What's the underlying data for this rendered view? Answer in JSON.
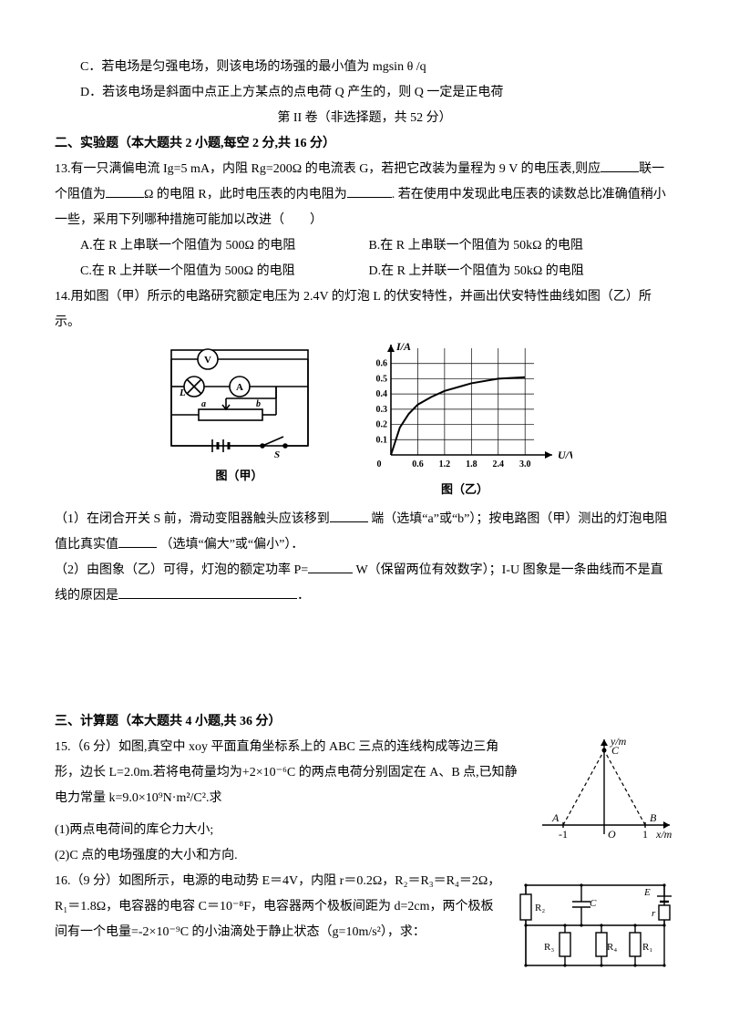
{
  "page": {
    "optC": "C．若电场是匀强电场，则该电场的场强的最小值为 mgsin θ /q",
    "optD": "D．若该电场是斜面中点正上方某点的点电荷 Q 产生的，则 Q 一定是正电荷",
    "part2_title": "第 II 卷（非选择题，共 52 分）",
    "sec2_title": "二、实验题（本大题共 2 小题,每空 2 分,共 16 分）",
    "q13_text_1": "13.有一只满偏电流 Ig=5 mA，内阻 Rg=200Ω 的电流表 G，若把它改装为量程为 9 V 的电压表,则应",
    "q13_text_2": "联一个阻值为",
    "q13_text_3": "Ω 的电阻 R，此时电压表的内电阻为",
    "q13_text_4": ". 若在使用中发现此电压表的读数总比准确值稍小一些，采用下列哪种措施可能加以改进（　　）",
    "q13_A": "A.在 R 上串联一个阻值为 500Ω 的电阻",
    "q13_B": "B.在 R 上串联一个阻值为 50kΩ 的电阻",
    "q13_C": "C.在 R 上并联一个阻值为 500Ω 的电阻",
    "q13_D": "D.在 R 上并联一个阻值为 50kΩ 的电阻",
    "q14_intro": "14.用如图（甲）所示的电路研究额定电压为 2.4V 的灯泡 L 的伏安特性，并画出伏安特性曲线如图（乙）所示。",
    "fig_jia_label": "图（甲）",
    "fig_yi_label": "图（乙）",
    "q14_1a": "（1）在闭合开关 S 前，滑动变阻器触头应该移到",
    "q14_1b": "端（选填“a”或“b”）；按电路图（甲）测出的灯泡电阻值比真实值",
    "q14_1c": "（选填“偏大”或“偏小”）．",
    "q14_2a": "（2）由图象（乙）可得，灯泡的额定功率 P=",
    "q14_2b": "W（保留两位有效数字）；I-U 图象是一条曲线而不是直线的原因是",
    "sec3_title": "三、计算题（本大题共 4 小题,共 36 分）",
    "q15": "15.（6 分）如图,真空中 xoy 平面直角坐标系上的 ABC 三点的连线构成等边三角形，边长 L=2.0m.若将电荷量均为+2×10⁻⁶C 的两点电荷分别固定在 A、B 点,已知静电力常量 k=9.0×10⁹N·m²/C².求",
    "q15_1": "(1)两点电荷间的库仑力大小;",
    "q15_2": "(2)C 点的电场强度的大小和方向.",
    "q16": "16.（9 分）如图所示，电源的电动势 E＝4V，内阻 r＝0.2Ω，R₂＝R₃＝R₄＝2Ω，R₁＝1.8Ω，电容器的电容 C＝10⁻⁸F，电容器两个极板间距为 d=2cm，两个极板间有一个电量=-2×10⁻⁹C 的小油滴处于静止状态（g=10m/s²），求："
  },
  "chart": {
    "x_label": "U/V",
    "y_label": "I/A",
    "x_ticks": [
      "0.6",
      "1.2",
      "1.8",
      "2.4",
      "3.0"
    ],
    "y_ticks": [
      "0.1",
      "0.2",
      "0.3",
      "0.4",
      "0.5",
      "0.6"
    ],
    "xlim": [
      0,
      3.2
    ],
    "ylim": [
      0,
      0.7
    ],
    "grid_color": "#000000",
    "grid_stroke": 0.7,
    "axis_stroke": 1.6,
    "label_fontsize": 12,
    "tick_fontsize": 10,
    "curve_points": [
      [
        0,
        0
      ],
      [
        0.2,
        0.18
      ],
      [
        0.4,
        0.27
      ],
      [
        0.6,
        0.33
      ],
      [
        0.9,
        0.38
      ],
      [
        1.2,
        0.42
      ],
      [
        1.8,
        0.47
      ],
      [
        2.4,
        0.5
      ],
      [
        3.0,
        0.51
      ]
    ]
  },
  "triangle_fig": {
    "x_label": "x/m",
    "y_label": "y/m",
    "A_x": -1,
    "B_x": 1,
    "labels": {
      "A": "A",
      "B": "B",
      "C": "C",
      "O": "O",
      "m1": "-1",
      "p1": "1"
    },
    "axis_stroke": 1.4,
    "dash": "4,3",
    "fontsize": 12
  },
  "circuit_fig": {
    "components": {
      "V": "V",
      "A": "A",
      "L": "L",
      "a": "a",
      "b": "b",
      "S": "S"
    },
    "stroke": 1.6
  },
  "rc_fig": {
    "labels": {
      "R1": "R₁",
      "R2": "R₂",
      "R3": "R₃",
      "R4": "R₄",
      "E": "E",
      "r": "r",
      "C": "C"
    },
    "stroke": 1.4
  }
}
